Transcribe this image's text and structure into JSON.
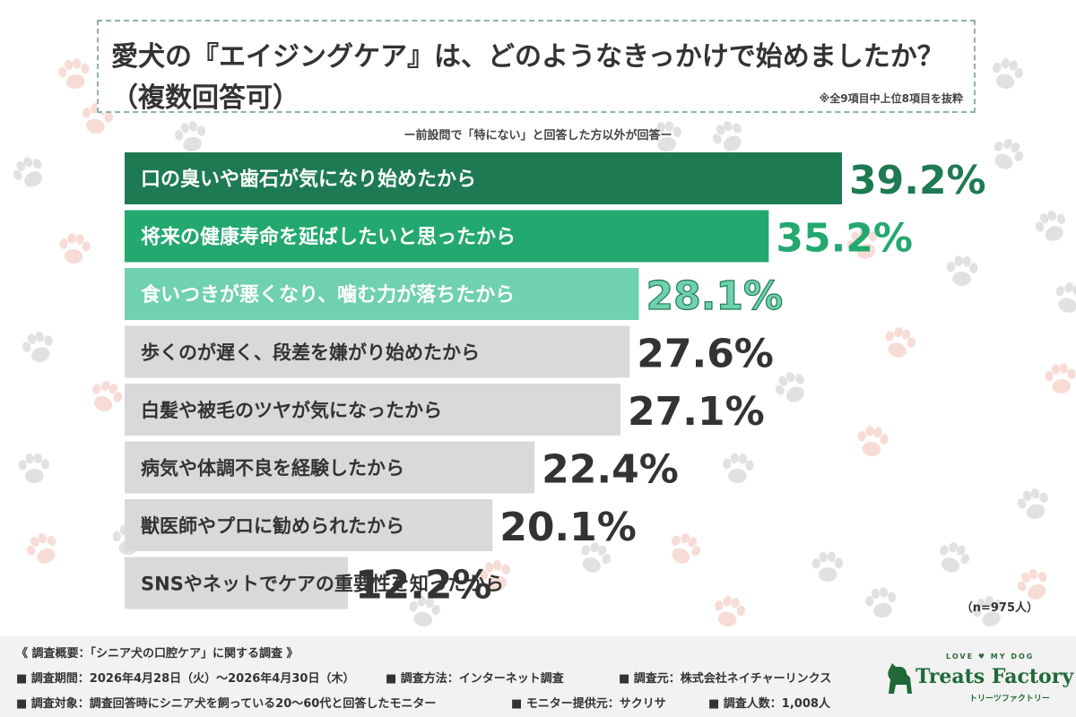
{
  "title": {
    "line1": "愛犬の『エイジングケア』は、どのようなきっかけで始めましたか？",
    "line2": "（複数回答可）",
    "note": "※全9項目中上位8項目を抜粋"
  },
  "subnote": "ー前設問で「特にない」と回答した方以外が回答ー",
  "chart_data": {
    "type": "bar",
    "orientation": "horizontal",
    "categories": [
      "口の臭いや歯石が気になり始めたから",
      "将来の健康寿命を延ばしたいと思ったから",
      "食いつきが悪くなり、噛む力が落ちたから",
      "歩くのが遅く、段差を嫌がり始めたから",
      "白髪や被毛のツヤが気になったから",
      "病気や体調不良を経験したから",
      "獣医師やプロに勧められたから",
      "SNSやネットでケアの重要性を知ったから"
    ],
    "values": [
      39.2,
      35.2,
      28.1,
      27.6,
      27.1,
      22.4,
      20.1,
      12.2
    ],
    "value_labels": [
      "39.2%",
      "35.2%",
      "28.1%",
      "27.6%",
      "27.1%",
      "22.4%",
      "20.1%",
      "12.2%"
    ],
    "unit": "%",
    "bar_colors": [
      "#1e7a52",
      "#23a86f",
      "#6fd1ad",
      "#d9d9d9",
      "#d9d9d9",
      "#d9d9d9",
      "#d9d9d9",
      "#d9d9d9"
    ],
    "label_colors": [
      "#ffffff",
      "#ffffff",
      "#ffffff",
      "#333333",
      "#333333",
      "#333333",
      "#333333",
      "#333333"
    ],
    "value_colors": [
      "#1e7a52",
      "#23a86f",
      "#6fd1ad",
      "#333333",
      "#333333",
      "#333333",
      "#333333",
      "#333333"
    ],
    "sample": "（n=975人）"
  },
  "footer": {
    "heading": "《 調査概要：「シニア犬の口腔ケア」に関する調査 》",
    "period": "■ 調査期間：2026年4月28日（火）～2026年4月30日（木）",
    "method": "■ 調査方法：インターネット調査",
    "source": "■ 調査元：株式会社ネイチャーリンクス",
    "target": "■ 調査対象：調査回答時にシニア犬を飼っている20～60代と回答したモニター",
    "provider": "■ モニター提供元：サクリサ",
    "count": "■ 調査人数：1,008人"
  },
  "logo": {
    "top": "LOVE ♥ MY DOG",
    "main": "Treats Factory",
    "sub": "トリーツファクトリー"
  }
}
